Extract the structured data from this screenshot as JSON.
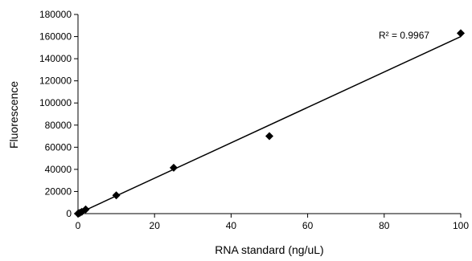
{
  "chart_data": {
    "type": "scatter",
    "title": "",
    "xlabel": "RNA standard (ng/uL)",
    "ylabel": "Fluorescence",
    "xlim": [
      0,
      100
    ],
    "ylim": [
      0,
      180000
    ],
    "x_ticks": [
      0,
      20,
      40,
      60,
      80,
      100
    ],
    "y_ticks": [
      0,
      20000,
      40000,
      60000,
      80000,
      100000,
      120000,
      140000,
      160000,
      180000
    ],
    "grid": false,
    "legend": "none",
    "series": [
      {
        "marker": "diamond",
        "color": "#000000",
        "x": [
          0,
          0.2,
          0.5,
          1,
          2,
          10,
          25,
          50,
          100
        ],
        "y": [
          0,
          300,
          700,
          1600,
          3800,
          16500,
          41500,
          70000,
          163000
        ]
      }
    ],
    "trendline": {
      "type": "linear",
      "color": "#000000",
      "x": [
        0,
        100
      ],
      "y": [
        0,
        160000
      ]
    },
    "annotations": [
      {
        "text": "R² = 0.9967"
      }
    ]
  }
}
